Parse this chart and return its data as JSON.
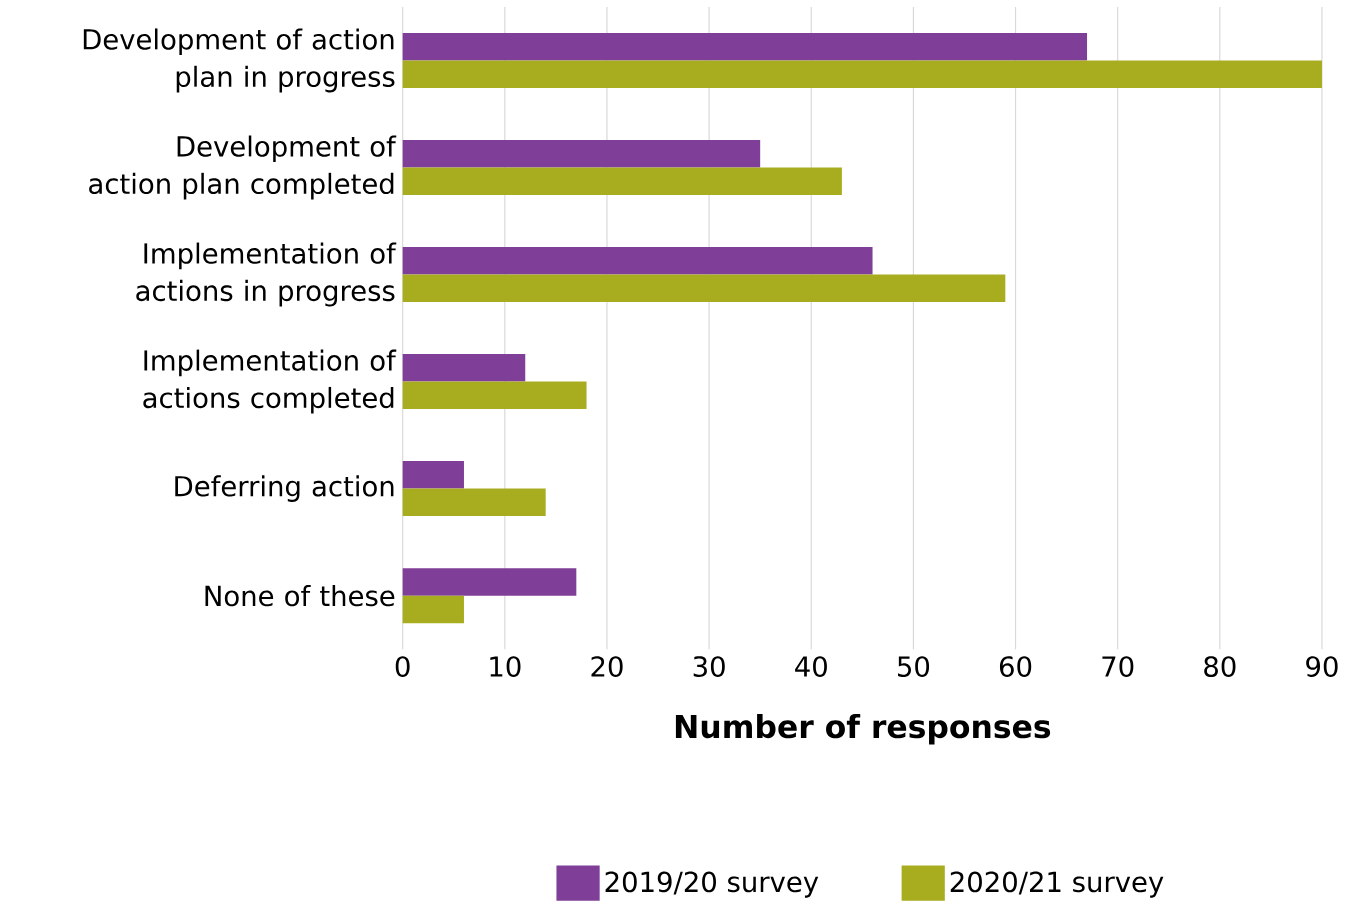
{
  "chart_data": {
    "type": "bar",
    "orientation": "horizontal",
    "categories": [
      "Development of action plan in progress",
      "Development of action plan completed",
      "Implementation of actions in progress",
      "Implementation of actions completed",
      "Deferring action",
      "None of these"
    ],
    "series": [
      {
        "name": "2019/20 survey",
        "color": "#7f3f98",
        "values": [
          67,
          35,
          46,
          12,
          6,
          17
        ]
      },
      {
        "name": "2020/21 survey",
        "color": "#a8ad1f",
        "values": [
          90,
          43,
          59,
          18,
          14,
          6
        ]
      }
    ],
    "xlabel": "Number of responses",
    "xlim": [
      0,
      90
    ],
    "xticks": [
      0,
      10,
      20,
      30,
      40,
      50,
      60,
      70,
      80,
      90
    ],
    "grid": "x",
    "legend": "bottom"
  }
}
